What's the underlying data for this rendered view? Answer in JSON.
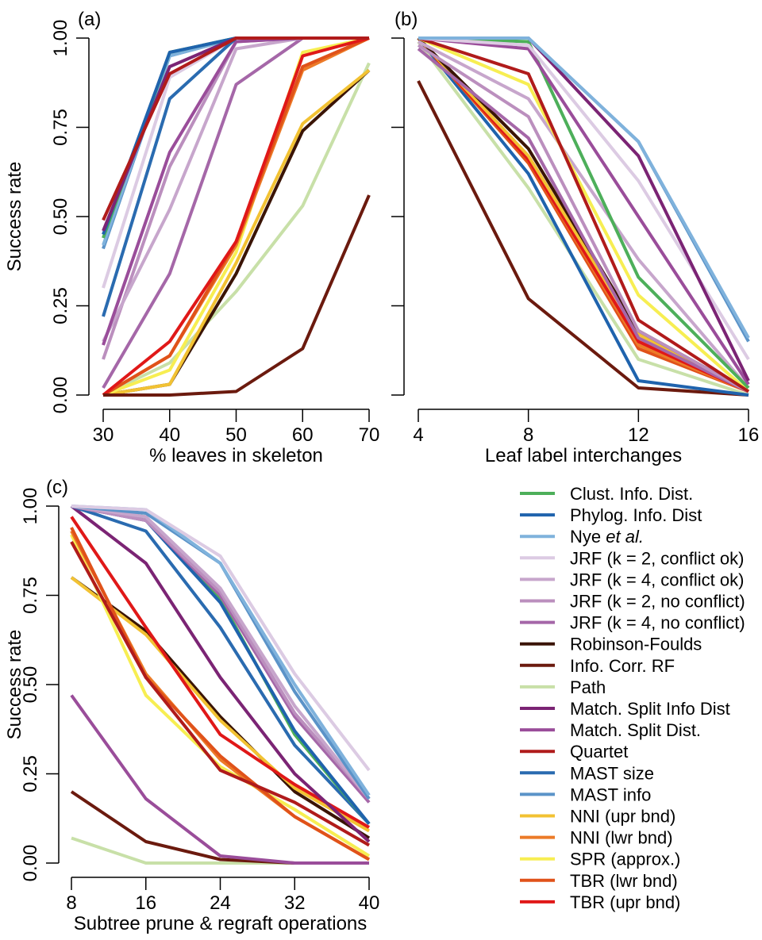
{
  "chart_data": [
    {
      "type": "line",
      "panel_label": "(a)",
      "xlabel": "% leaves in skeleton",
      "ylabel": "Success rate",
      "x": [
        30,
        40,
        50,
        60,
        70
      ],
      "xticks": [
        "30",
        "40",
        "50",
        "60",
        "70"
      ],
      "ylim": [
        0,
        1
      ],
      "yticks": [
        "0.00",
        "0.25",
        "0.50",
        "0.75",
        "1.00"
      ],
      "series": [
        {
          "name": "Path",
          "values": [
            0.0,
            0.09,
            0.29,
            0.53,
            0.93
          ]
        },
        {
          "name": "Robinson-Foulds",
          "values": [
            0.0,
            0.03,
            0.34,
            0.74,
            0.91
          ]
        },
        {
          "name": "NNI (upr bnd)",
          "values": [
            0.0,
            0.03,
            0.37,
            0.76,
            0.91
          ]
        },
        {
          "name": "SPR (approx.)",
          "values": [
            0.0,
            0.07,
            0.4,
            0.96,
            1.0
          ]
        },
        {
          "name": "NNI (lwr bnd)",
          "values": [
            0.0,
            0.11,
            0.42,
            0.91,
            1.0
          ]
        },
        {
          "name": "TBR (lwr bnd)",
          "values": [
            0.0,
            0.11,
            0.43,
            0.92,
            1.0
          ]
        },
        {
          "name": "TBR (upr bnd)",
          "values": [
            0.0,
            0.15,
            0.43,
            0.95,
            1.0
          ]
        },
        {
          "name": "Info. Corr. RF",
          "values": [
            0.0,
            0.0,
            0.01,
            0.13,
            0.56
          ]
        },
        {
          "name": "JRF (k = 4, no conflict)",
          "values": [
            0.02,
            0.34,
            0.87,
            1.0,
            1.0
          ]
        },
        {
          "name": "JRF (k = 2, no conflict)",
          "values": [
            0.1,
            0.64,
            0.99,
            1.0,
            1.0
          ]
        },
        {
          "name": "JRF (k = 4, conflict ok)",
          "values": [
            0.15,
            0.52,
            0.97,
            1.0,
            1.0
          ]
        },
        {
          "name": "JRF (k = 2, conflict ok)",
          "values": [
            0.3,
            0.89,
            1.0,
            1.0,
            1.0
          ]
        },
        {
          "name": "Match. Split Dist.",
          "values": [
            0.14,
            0.68,
            0.99,
            1.0,
            1.0
          ]
        },
        {
          "name": "MAST size",
          "values": [
            0.22,
            0.83,
            1.0,
            1.0,
            1.0
          ]
        },
        {
          "name": "MAST info",
          "values": [
            0.41,
            0.95,
            1.0,
            1.0,
            1.0
          ]
        },
        {
          "name": "Nye et al.",
          "values": [
            0.42,
            0.95,
            1.0,
            1.0,
            1.0
          ]
        },
        {
          "name": "Clust. Info. Dist.",
          "values": [
            0.44,
            0.96,
            1.0,
            1.0,
            1.0
          ]
        },
        {
          "name": "Phylog. Info. Dist",
          "values": [
            0.45,
            0.96,
            1.0,
            1.0,
            1.0
          ]
        },
        {
          "name": "Match. Split Info Dist",
          "values": [
            0.46,
            0.92,
            1.0,
            1.0,
            1.0
          ]
        },
        {
          "name": "Quartet",
          "values": [
            0.49,
            0.9,
            1.0,
            1.0,
            1.0
          ]
        }
      ]
    },
    {
      "type": "line",
      "panel_label": "(b)",
      "xlabel": "Leaf label interchanges",
      "ylabel": "",
      "x": [
        4,
        8,
        12,
        16
      ],
      "xticks": [
        "4",
        "8",
        "12",
        "16"
      ],
      "ylim": [
        0,
        1
      ],
      "yticks": [],
      "series": [
        {
          "name": "Info. Corr. RF",
          "values": [
            0.88,
            0.27,
            0.02,
            0.0
          ]
        },
        {
          "name": "Path",
          "values": [
            0.99,
            0.58,
            0.1,
            0.0
          ]
        },
        {
          "name": "Phylog. Info. Dist",
          "values": [
            1.0,
            0.62,
            0.04,
            0.0
          ]
        },
        {
          "name": "TBR (lwr bnd)",
          "values": [
            1.0,
            0.65,
            0.13,
            0.01
          ]
        },
        {
          "name": "NNI (lwr bnd)",
          "values": [
            1.0,
            0.66,
            0.14,
            0.01
          ]
        },
        {
          "name": "TBR (upr bnd)",
          "values": [
            1.0,
            0.66,
            0.15,
            0.01
          ]
        },
        {
          "name": "NNI (upr bnd)",
          "values": [
            1.0,
            0.67,
            0.17,
            0.01
          ]
        },
        {
          "name": "Robinson-Foulds",
          "values": [
            1.0,
            0.69,
            0.18,
            0.01
          ]
        },
        {
          "name": "JRF (k = 4, no conflict)",
          "values": [
            0.97,
            0.72,
            0.16,
            0.01
          ]
        },
        {
          "name": "JRF (k = 2, no conflict)",
          "values": [
            0.98,
            0.78,
            0.18,
            0.01
          ]
        },
        {
          "name": "JRF (k = 4, conflict ok)",
          "values": [
            0.99,
            0.83,
            0.38,
            0.02
          ]
        },
        {
          "name": "SPR (approx.)",
          "values": [
            1.0,
            0.87,
            0.28,
            0.01
          ]
        },
        {
          "name": "Quartet",
          "values": [
            1.0,
            0.9,
            0.21,
            0.01
          ]
        },
        {
          "name": "Clust. Info. Dist.",
          "values": [
            1.0,
            0.99,
            0.33,
            0.02
          ]
        },
        {
          "name": "Match. Split Dist.",
          "values": [
            1.0,
            0.97,
            0.5,
            0.03
          ]
        },
        {
          "name": "JRF (k = 2, conflict ok)",
          "values": [
            1.0,
            0.98,
            0.6,
            0.1
          ]
        },
        {
          "name": "Match. Split Info Dist",
          "values": [
            1.0,
            1.0,
            0.67,
            0.04
          ]
        },
        {
          "name": "MAST info",
          "values": [
            1.0,
            1.0,
            0.71,
            0.15
          ]
        },
        {
          "name": "Nye et al.",
          "values": [
            1.0,
            1.0,
            0.71,
            0.16
          ]
        }
      ]
    },
    {
      "type": "line",
      "panel_label": "(c)",
      "xlabel": "Subtree prune & regraft operations",
      "ylabel": "Success rate",
      "x": [
        8,
        16,
        24,
        32,
        40
      ],
      "xticks": [
        "8",
        "16",
        "24",
        "32",
        "40"
      ],
      "ylim": [
        0,
        1
      ],
      "yticks": [
        "0.00",
        "0.25",
        "0.50",
        "0.75",
        "1.00"
      ],
      "series": [
        {
          "name": "Path",
          "values": [
            0.07,
            0.0,
            0.0,
            0.0,
            0.0
          ]
        },
        {
          "name": "Info. Corr. RF",
          "values": [
            0.2,
            0.06,
            0.01,
            0.0,
            0.0
          ]
        },
        {
          "name": "Match. Split Dist.",
          "values": [
            0.47,
            0.18,
            0.02,
            0.0,
            0.0
          ]
        },
        {
          "name": "Robinson-Foulds",
          "values": [
            0.8,
            0.65,
            0.41,
            0.2,
            0.07
          ]
        },
        {
          "name": "NNI (upr bnd)",
          "values": [
            0.8,
            0.64,
            0.4,
            0.21,
            0.09
          ]
        },
        {
          "name": "SPR (approx.)",
          "values": [
            0.92,
            0.47,
            0.27,
            0.15,
            0.02
          ]
        },
        {
          "name": "NNI (lwr bnd)",
          "values": [
            0.93,
            0.53,
            0.29,
            0.13,
            0.01
          ]
        },
        {
          "name": "TBR (lwr bnd)",
          "values": [
            0.94,
            0.52,
            0.3,
            0.13,
            0.01
          ]
        },
        {
          "name": "Quartet",
          "values": [
            0.9,
            0.52,
            0.26,
            0.17,
            0.05
          ]
        },
        {
          "name": "TBR (upr bnd)",
          "values": [
            0.97,
            0.66,
            0.36,
            0.22,
            0.1
          ]
        },
        {
          "name": "Match. Split Info Dist",
          "values": [
            1.0,
            0.84,
            0.52,
            0.25,
            0.06
          ]
        },
        {
          "name": "MAST size",
          "values": [
            1.0,
            0.93,
            0.66,
            0.33,
            0.11
          ]
        },
        {
          "name": "Clust. Info. Dist.",
          "values": [
            1.0,
            0.97,
            0.74,
            0.36,
            0.11
          ]
        },
        {
          "name": "Phylog. Info. Dist",
          "values": [
            1.0,
            0.96,
            0.73,
            0.37,
            0.11
          ]
        },
        {
          "name": "JRF (k = 4, no conflict)",
          "values": [
            1.0,
            0.96,
            0.75,
            0.41,
            0.17
          ]
        },
        {
          "name": "JRF (k = 2, no conflict)",
          "values": [
            1.0,
            0.96,
            0.76,
            0.42,
            0.18
          ]
        },
        {
          "name": "JRF (k = 4, conflict ok)",
          "values": [
            1.0,
            0.97,
            0.77,
            0.44,
            0.18
          ]
        },
        {
          "name": "MAST info",
          "values": [
            1.0,
            0.98,
            0.84,
            0.48,
            0.18
          ]
        },
        {
          "name": "Nye et al.",
          "values": [
            1.0,
            0.99,
            0.84,
            0.5,
            0.19
          ]
        },
        {
          "name": "JRF (k = 2, conflict ok)",
          "values": [
            1.0,
            0.99,
            0.86,
            0.53,
            0.26
          ]
        }
      ]
    }
  ],
  "legend": [
    {
      "label": "Clust. Info. Dist.",
      "color": "#4daf5a"
    },
    {
      "label": "Phylog. Info. Dist",
      "color": "#1f63ad"
    },
    {
      "label": "Nye et al.",
      "color": "#7fb2dc"
    },
    {
      "label": "JRF (k = 2, conflict ok)",
      "color": "#dccbe3"
    },
    {
      "label": "JRF (k = 4, conflict ok)",
      "color": "#c7a6cc"
    },
    {
      "label": "JRF (k = 2, no conflict)",
      "color": "#bb8fbe"
    },
    {
      "label": "JRF (k = 4, no conflict)",
      "color": "#a567a8"
    },
    {
      "label": "Robinson-Foulds",
      "color": "#3a1405"
    },
    {
      "label": "Info. Corr. RF",
      "color": "#6b1a0e"
    },
    {
      "label": "Path",
      "color": "#c8e0a8"
    },
    {
      "label": "Match. Split Info Dist",
      "color": "#7b2474"
    },
    {
      "label": "Match. Split Dist.",
      "color": "#9a4d9a"
    },
    {
      "label": "Quartet",
      "color": "#b01b1b"
    },
    {
      "label": "MAST size",
      "color": "#2a6bb0"
    },
    {
      "label": "MAST info",
      "color": "#5b93c8"
    },
    {
      "label": "NNI (upr bnd)",
      "color": "#f2c233"
    },
    {
      "label": "NNI (lwr bnd)",
      "color": "#ec7b28"
    },
    {
      "label": "SPR (approx.)",
      "color": "#f7ee52"
    },
    {
      "label": "TBR (lwr bnd)",
      "color": "#e0521a"
    },
    {
      "label": "TBR (upr bnd)",
      "color": "#e01818"
    }
  ]
}
